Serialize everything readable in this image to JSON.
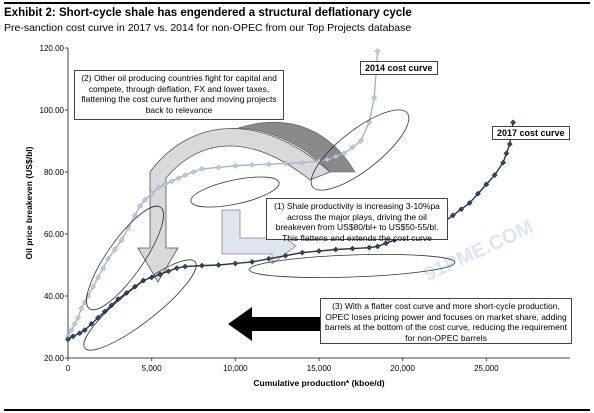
{
  "title": "Exhibit 2: Short-cycle shale has engendered a structural deflationary cycle",
  "subtitle": "Pre-sanction cost curve in 2017 vs. 2014 for non-OPEC from our Top Projects database",
  "watermark": "91PME.COM",
  "annotations": {
    "a1": "(1) Shale productivity is increasing 3-10%pa across the major plays, driving the oil breakeven from US$80/bl+ to US$50-55/bl. This flattens and extends the cost curve",
    "a2": "(2) Other oil producing countries fight for capital and compete, through deflation, FX and lower taxes, flattening the cost curve further and moving projects back to relevance",
    "a3": "(3) With a flatter cost curve and more short-cycle production, OPEC loses pricing power and focuses on market share, adding barrels at the bottom of the cost curve, reducing the requirement for non-OPEC barrels"
  },
  "colors": {
    "series_2014": "#9fb7d6",
    "series_2017": "#1f3552",
    "arrow_fill": "#dcdcdc"
  },
  "chart_data": {
    "type": "line",
    "title": "",
    "xlabel": "Cumulative production* (kboe/d)",
    "ylabel": "Oil price breakeven (US$/bl)",
    "xlim": [
      0,
      30000
    ],
    "ylim": [
      20,
      120
    ],
    "xticks": [
      0,
      5000,
      10000,
      15000,
      20000,
      25000
    ],
    "xtick_labels": [
      "0",
      "5,000",
      "10,000",
      "15,000",
      "20,000",
      "25,000"
    ],
    "yticks": [
      20,
      40,
      60,
      80,
      100,
      120
    ],
    "ytick_labels": [
      "20.00",
      "40.00",
      "60.00",
      "80.00",
      "100.00",
      "120.00"
    ],
    "grid": false,
    "series": [
      {
        "name": "2014 cost curve",
        "x": [
          0,
          200,
          400,
          600,
          800,
          1000,
          1200,
          1500,
          1800,
          2100,
          2400,
          2800,
          3200,
          3600,
          4000,
          4300,
          4600,
          5000,
          5400,
          5800,
          6200,
          6600,
          7000,
          7500,
          8000,
          9000,
          10000,
          11000,
          12000,
          13000,
          14000,
          15000,
          15500,
          16000,
          16500,
          17000,
          17500,
          18000,
          18300,
          18500
        ],
        "y": [
          27,
          29,
          31,
          33,
          36,
          38,
          40,
          43,
          46,
          49,
          52,
          55,
          58,
          62,
          66,
          69,
          71,
          73,
          75,
          76,
          77,
          78,
          79,
          80,
          81,
          81.5,
          82,
          82.3,
          82.5,
          82.8,
          83,
          83.5,
          84,
          85,
          86,
          88,
          90,
          96,
          104,
          119
        ]
      },
      {
        "name": "2017 cost curve",
        "x": [
          0,
          300,
          700,
          1000,
          1400,
          1800,
          2200,
          2600,
          3000,
          3500,
          4000,
          4500,
          5000,
          5500,
          6000,
          6500,
          7000,
          8000,
          9000,
          10000,
          11000,
          12000,
          13000,
          14000,
          15000,
          16000,
          17000,
          18000,
          18500,
          19000,
          19500,
          20000,
          20500,
          21000,
          21500,
          22000,
          22500,
          23000,
          23500,
          24000,
          24500,
          25000,
          25500,
          26000,
          26200,
          26400,
          26600
        ],
        "y": [
          26,
          27,
          28,
          29,
          31,
          33,
          35,
          37,
          39,
          41,
          43,
          45,
          46,
          47,
          48,
          49,
          49.5,
          49.8,
          50,
          50.5,
          51,
          52,
          53,
          54,
          54.5,
          55,
          55.3,
          55.6,
          56,
          57,
          58,
          59,
          60,
          61,
          62,
          63,
          64,
          66,
          68,
          70,
          73,
          76,
          79,
          83,
          86,
          89,
          96
        ]
      }
    ],
    "series_labels": [
      "2014 cost curve",
      "2017 cost curve"
    ]
  }
}
